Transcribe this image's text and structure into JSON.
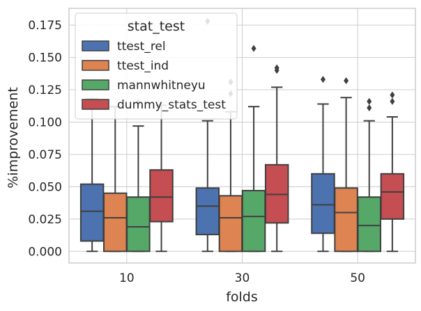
{
  "chart_data": {
    "type": "boxplot",
    "xlabel": "folds",
    "ylabel": "%improvement",
    "categories": [
      "10",
      "30",
      "50"
    ],
    "ylim": [
      -0.009,
      0.188
    ],
    "yticks": [
      "0.000",
      "0.025",
      "0.050",
      "0.075",
      "0.100",
      "0.125",
      "0.150",
      "0.175"
    ],
    "grid": true,
    "legend": {
      "title": "stat_test",
      "position": "top-left"
    },
    "series": [
      {
        "name": "ttest_rel",
        "color": "#4c72b0",
        "boxes": [
          {
            "whislo": 0.0,
            "q1": 0.008,
            "median": 0.031,
            "q3": 0.052,
            "whishi": 0.118,
            "fliers": []
          },
          {
            "whislo": 0.0,
            "q1": 0.013,
            "median": 0.035,
            "q3": 0.049,
            "whishi": 0.101,
            "fliers": [
              0.178
            ]
          },
          {
            "whislo": 0.0,
            "q1": 0.014,
            "median": 0.036,
            "q3": 0.06,
            "whishi": 0.114,
            "fliers": [
              0.133
            ]
          }
        ]
      },
      {
        "name": "ttest_ind",
        "color": "#dd8452",
        "boxes": [
          {
            "whislo": 0.0,
            "q1": 0.0,
            "median": 0.026,
            "q3": 0.045,
            "whishi": 0.112,
            "fliers": []
          },
          {
            "whislo": 0.0,
            "q1": 0.0,
            "median": 0.026,
            "q3": 0.043,
            "whishi": 0.108,
            "fliers": [
              0.122,
              0.131
            ]
          },
          {
            "whislo": 0.0,
            "q1": 0.0,
            "median": 0.03,
            "q3": 0.049,
            "whishi": 0.119,
            "fliers": [
              0.132
            ]
          }
        ]
      },
      {
        "name": "mannwhitneyu",
        "color": "#55a868",
        "boxes": [
          {
            "whislo": 0.0,
            "q1": 0.0,
            "median": 0.019,
            "q3": 0.042,
            "whishi": 0.097,
            "fliers": [
              0.115
            ]
          },
          {
            "whislo": 0.0,
            "q1": 0.0,
            "median": 0.027,
            "q3": 0.047,
            "whishi": 0.112,
            "fliers": [
              0.157
            ]
          },
          {
            "whislo": 0.0,
            "q1": 0.0,
            "median": 0.02,
            "q3": 0.042,
            "whishi": 0.101,
            "fliers": [
              0.111,
              0.116
            ]
          }
        ]
      },
      {
        "name": "dummy_stats_test",
        "color": "#c44e52",
        "boxes": [
          {
            "whislo": 0.0,
            "q1": 0.023,
            "median": 0.042,
            "q3": 0.063,
            "whishi": 0.113,
            "fliers": []
          },
          {
            "whislo": 0.0,
            "q1": 0.022,
            "median": 0.044,
            "q3": 0.067,
            "whishi": 0.127,
            "fliers": [
              0.14,
              0.142
            ]
          },
          {
            "whislo": 0.0,
            "q1": 0.025,
            "median": 0.046,
            "q3": 0.06,
            "whishi": 0.104,
            "fliers": [
              0.116,
              0.121
            ]
          }
        ]
      }
    ]
  }
}
